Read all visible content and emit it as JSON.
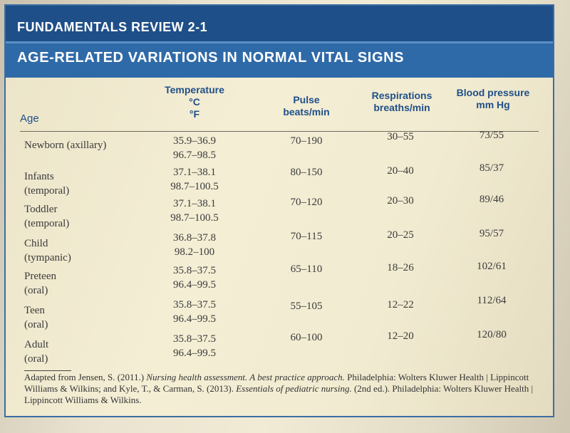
{
  "header": {
    "series_title": "FUNDAMENTALS REVIEW 2-1",
    "table_title": "AGE-RELATED VARIATIONS IN NORMAL VITAL SIGNS"
  },
  "columns": {
    "age": "Age",
    "temperature": [
      "Temperature",
      "°C",
      "°F"
    ],
    "pulse": [
      "Pulse",
      "beats/min"
    ],
    "respirations": [
      "Respirations",
      "breaths/min"
    ],
    "blood_pressure": [
      "Blood pressure",
      "mm Hg"
    ]
  },
  "rows": [
    {
      "age": [
        "Newborn (axillary)"
      ],
      "temp": [
        "35.9–36.9",
        "96.7–98.5"
      ],
      "pulse": "70–190",
      "resp": "30–55",
      "bp": "73/55"
    },
    {
      "age": [
        "Infants",
        "(temporal)"
      ],
      "temp": [
        "37.1–38.1",
        "98.7–100.5"
      ],
      "pulse": "80–150",
      "resp": "20–40",
      "bp": "85/37"
    },
    {
      "age": [
        "Toddler",
        "(temporal)"
      ],
      "temp": [
        "37.1–38.1",
        "98.7–100.5"
      ],
      "pulse": "70–120",
      "resp": "20–30",
      "bp": "89/46"
    },
    {
      "age": [
        "Child",
        "(tympanic)"
      ],
      "temp": [
        "36.8–37.8",
        "98.2–100"
      ],
      "pulse": "70–115",
      "resp": "20–25",
      "bp": "95/57"
    },
    {
      "age": [
        "Preteen",
        "(oral)"
      ],
      "temp": [
        "35.8–37.5",
        "96.4–99.5"
      ],
      "pulse": "65–110",
      "resp": "18–26",
      "bp": "102/61"
    },
    {
      "age": [
        "Teen",
        "(oral)"
      ],
      "temp": [
        "35.8–37.5",
        "96.4–99.5"
      ],
      "pulse": "55–105",
      "resp": "12–22",
      "bp": "112/64"
    },
    {
      "age": [
        "Adult",
        "(oral)"
      ],
      "temp": [
        "35.8–37.5",
        "96.4–99.5"
      ],
      "pulse": "60–100",
      "resp": "12–20",
      "bp": "120/80"
    }
  ],
  "footnote": {
    "p1": "Adapted from Jensen, S. (2011.) ",
    "i1": "Nursing health assessment. A best practice approach.",
    "p2": " Philadelphia: Wolters Kluwer Health | Lippincott Williams & Wilkins; and Kyle, T., & Carman, S. (2013). ",
    "i2": "Essentials of pediatric nursing.",
    "p3": " (2nd ed.). Philadelphia: Wolters Kluwer Health | Lippincott Williams & Wilkins."
  }
}
